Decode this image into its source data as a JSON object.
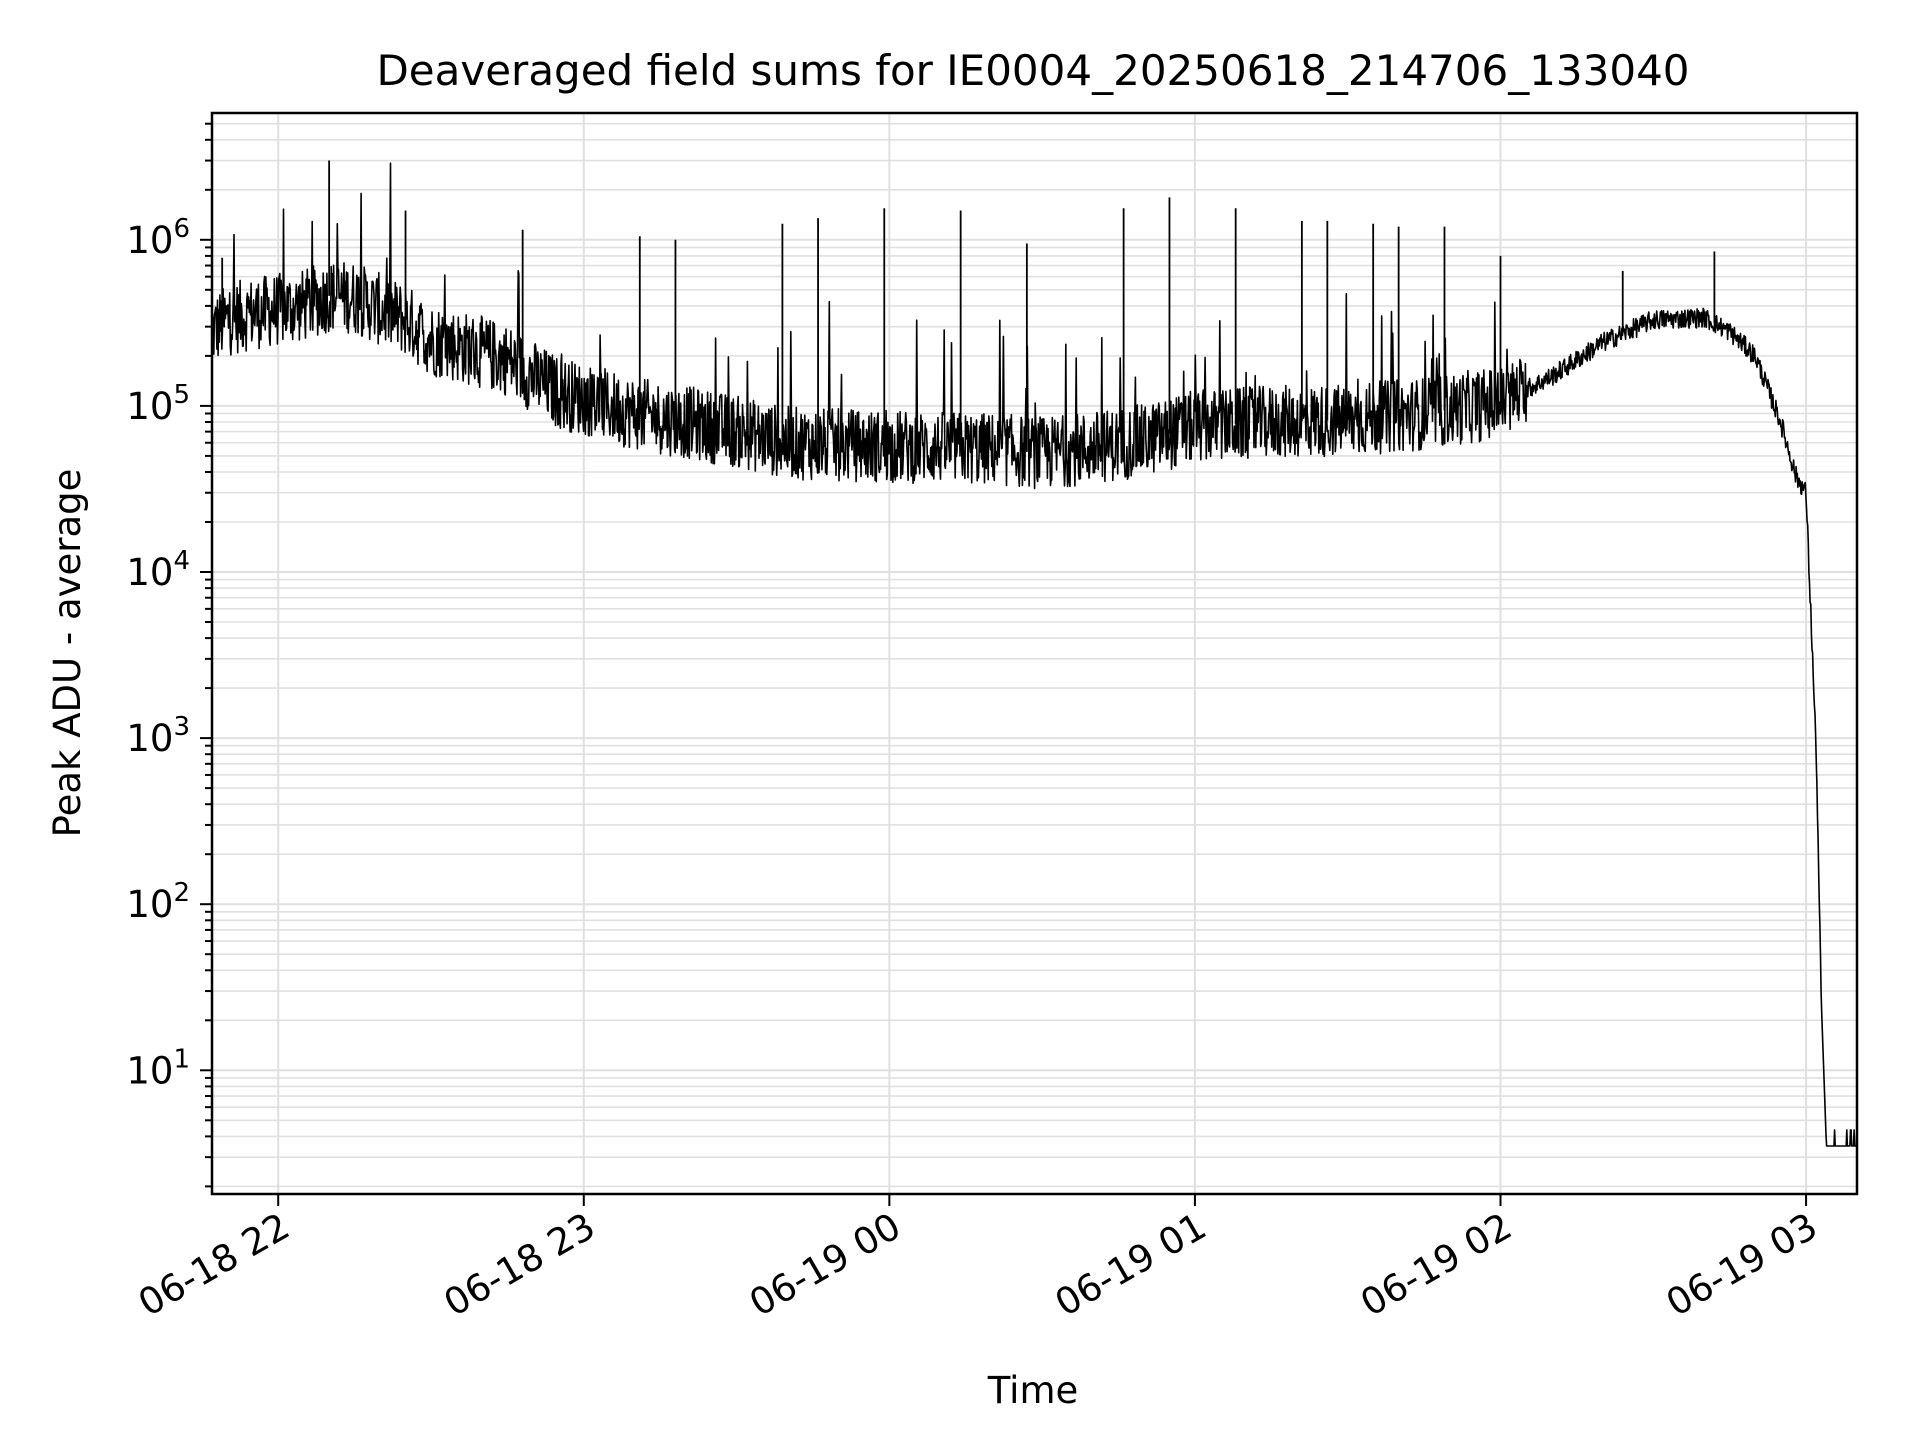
{
  "chart_data": {
    "type": "line",
    "title": "Deaveraged field sums for IE0004_20250618_214706_133040",
    "xlabel": "Time",
    "ylabel": "Peak ADU - average",
    "yscale": "log",
    "ylim": [
      1.8,
      5800000
    ],
    "xlim": [
      "06-18 21:47",
      "06-19 03:10"
    ],
    "grid": true,
    "line_color": "#000000",
    "grid_color": "#e0e0e0",
    "x_ticks": [
      {
        "t": "06-18 22:00",
        "label": "06-18 22"
      },
      {
        "t": "06-18 23:00",
        "label": "06-18 23"
      },
      {
        "t": "06-19 00:00",
        "label": "06-19 00"
      },
      {
        "t": "06-19 01:00",
        "label": "06-19 01"
      },
      {
        "t": "06-19 02:00",
        "label": "06-19 02"
      },
      {
        "t": "06-19 03:00",
        "label": "06-19 03"
      }
    ],
    "y_ticks": [
      {
        "value": 10,
        "base": "10",
        "exp": "1"
      },
      {
        "value": 100,
        "base": "10",
        "exp": "2"
      },
      {
        "value": 1000,
        "base": "10",
        "exp": "3"
      },
      {
        "value": 10000,
        "base": "10",
        "exp": "4"
      },
      {
        "value": 100000,
        "base": "10",
        "exp": "5"
      },
      {
        "value": 1000000,
        "base": "10",
        "exp": "6"
      }
    ],
    "series": [
      {
        "x": [
          "06-18 21:47",
          "06-18 21:50",
          "06-18 21:55",
          "06-18 22:00",
          "06-18 22:05",
          "06-18 22:10",
          "06-18 22:15",
          "06-18 22:20",
          "06-18 22:25",
          "06-18 22:30",
          "06-18 22:35",
          "06-18 22:40",
          "06-18 22:45",
          "06-18 22:50",
          "06-18 22:55",
          "06-18 23:00",
          "06-18 23:10",
          "06-18 23:20",
          "06-18 23:30",
          "06-18 23:40",
          "06-18 23:50",
          "06-19 00:00",
          "06-19 00:10",
          "06-19 00:20",
          "06-19 00:30",
          "06-19 00:40",
          "06-19 00:50",
          "06-19 01:00",
          "06-19 01:15",
          "06-19 01:30",
          "06-19 01:45",
          "06-19 02:00",
          "06-19 02:10",
          "06-19 02:20",
          "06-19 02:30",
          "06-19 02:40",
          "06-19 02:45",
          "06-19 02:50",
          "06-19 02:55",
          "06-19 02:58",
          "06-19 03:00",
          "06-19 03:01",
          "06-19 03:02",
          "06-19 03:03",
          "06-19 03:04",
          "06-19 03:10"
        ],
        "y": [
          280000,
          330000,
          360000,
          380000,
          400000,
          460000,
          450000,
          380000,
          330000,
          250000,
          230000,
          210000,
          190000,
          150000,
          120000,
          110000,
          90000,
          80000,
          70000,
          60000,
          58000,
          57000,
          56000,
          55000,
          52000,
          56000,
          62000,
          75000,
          80000,
          82000,
          90000,
          105000,
          150000,
          240000,
          330000,
          340000,
          280000,
          200000,
          80000,
          38000,
          30000,
          5000,
          800,
          25,
          3.5,
          3.5
        ]
      }
    ],
    "spikes": [
      {
        "t": "06-18 21:49",
        "y": 780000
      },
      {
        "t": "06-18 22:10",
        "y": 3000000
      },
      {
        "t": "06-18 22:25",
        "y": 1500000
      },
      {
        "t": "06-18 22:48",
        "y": 1150000
      },
      {
        "t": "06-18 23:11",
        "y": 1050000
      },
      {
        "t": "06-18 23:18",
        "y": 1000000
      },
      {
        "t": "06-18 23:39",
        "y": 1250000
      },
      {
        "t": "06-18 23:46",
        "y": 1350000
      },
      {
        "t": "06-18 23:59",
        "y": 1550000
      },
      {
        "t": "06-19 00:14",
        "y": 1500000
      },
      {
        "t": "06-19 00:27",
        "y": 950000
      },
      {
        "t": "06-19 00:46",
        "y": 1550000
      },
      {
        "t": "06-19 00:55",
        "y": 1800000
      },
      {
        "t": "06-19 01:08",
        "y": 1550000
      },
      {
        "t": "06-19 01:21",
        "y": 1300000
      },
      {
        "t": "06-19 01:26",
        "y": 1300000
      },
      {
        "t": "06-19 01:35",
        "y": 1250000
      },
      {
        "t": "06-19 01:40",
        "y": 1200000
      },
      {
        "t": "06-19 01:49",
        "y": 1200000
      },
      {
        "t": "06-19 02:00",
        "y": 800000
      },
      {
        "t": "06-19 02:24",
        "y": 650000
      },
      {
        "t": "06-19 02:42",
        "y": 850000
      }
    ]
  }
}
